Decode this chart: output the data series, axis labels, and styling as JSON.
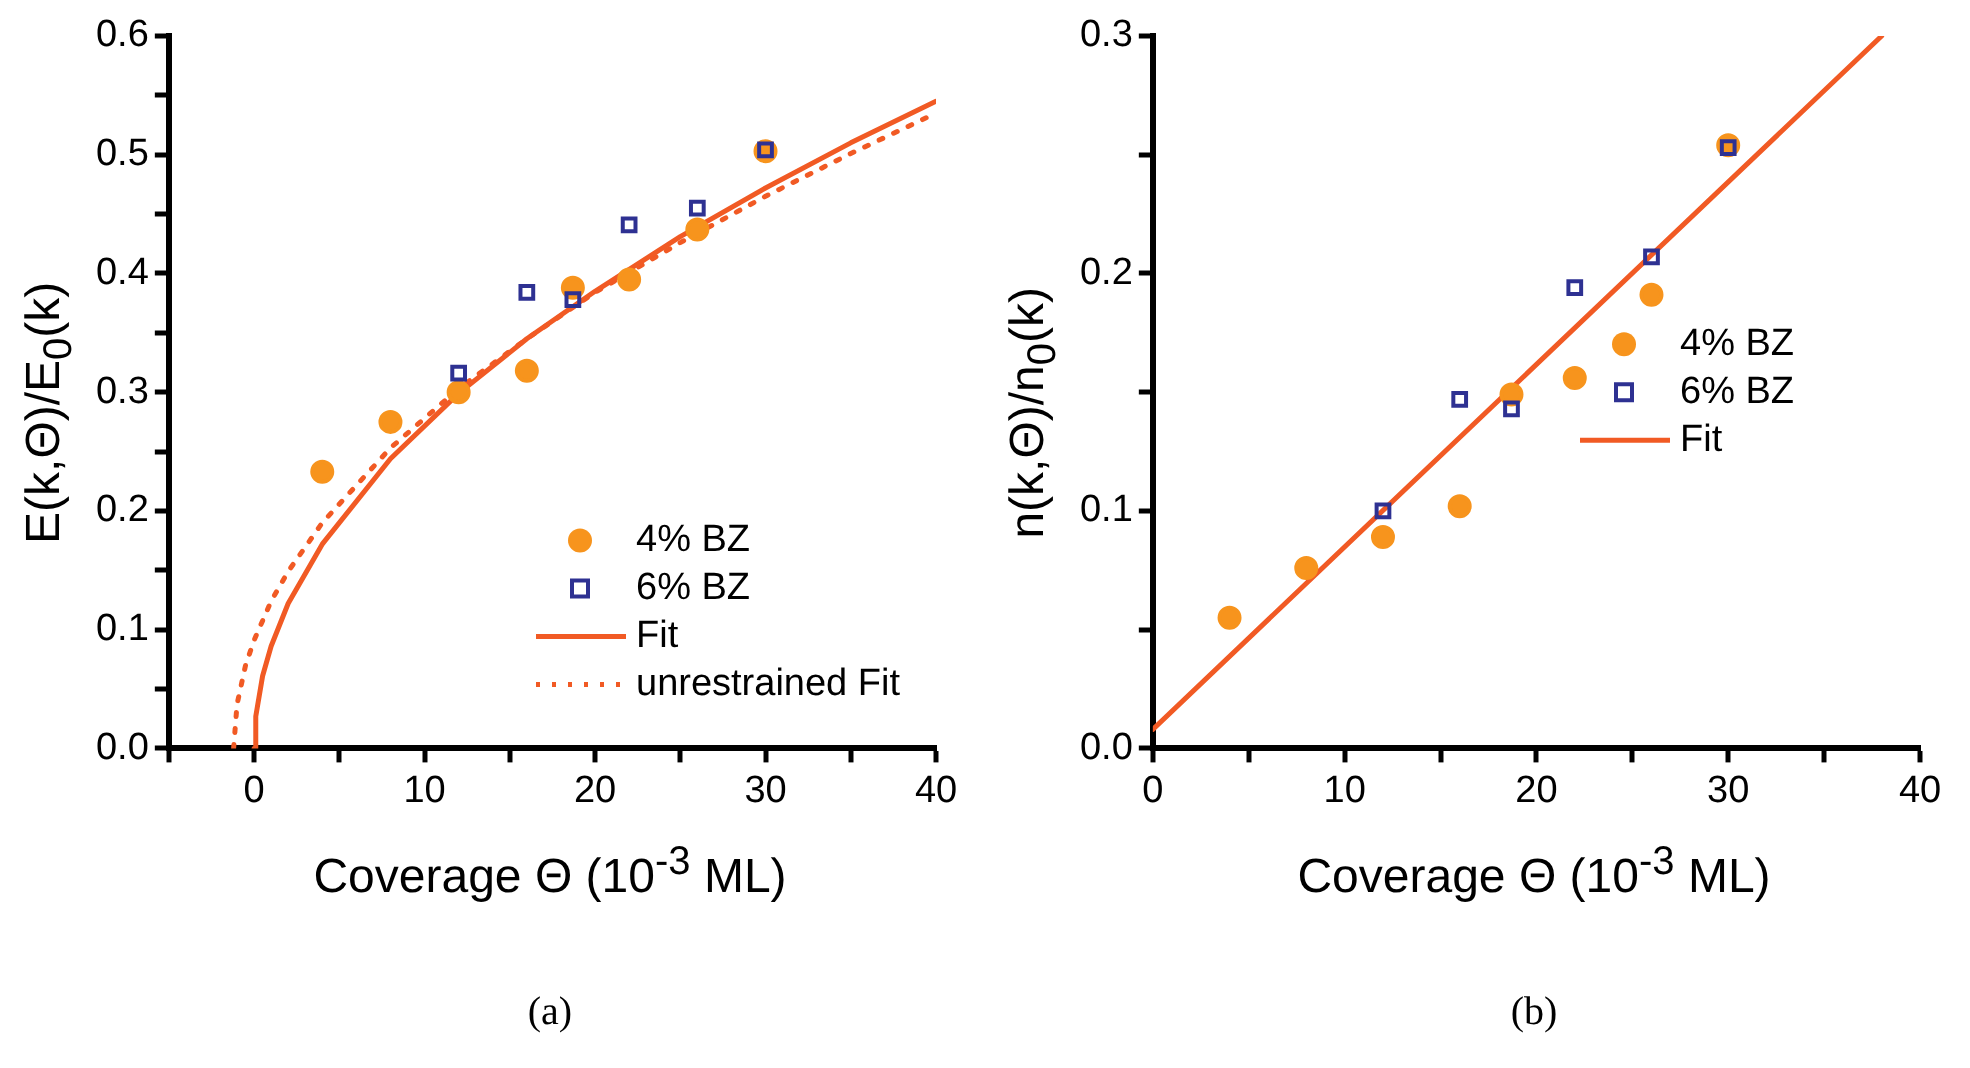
{
  "chart_data": [
    {
      "type": "scatter",
      "xlabel": "Coverage Θ (10$^{-3}$ ML)",
      "ylabel": "E(k,Θ)/E$_{0}$(k)",
      "annotations": [
        "(a)"
      ],
      "xlim": [
        -5,
        40
      ],
      "xticks": [
        {
          "value": -5,
          "label": null
        },
        {
          "value": 0,
          "label": "0"
        },
        {
          "value": 5,
          "label": null
        },
        {
          "value": 10,
          "label": "10"
        },
        {
          "value": 15,
          "label": null
        },
        {
          "value": 20,
          "label": "20"
        },
        {
          "value": 25,
          "label": null
        },
        {
          "value": 30,
          "label": "30"
        },
        {
          "value": 35,
          "label": null
        },
        {
          "value": 40,
          "label": "40"
        }
      ],
      "ylim": [
        0,
        0.6
      ],
      "yticks": [
        {
          "value": 0,
          "label": "0.0"
        },
        {
          "value": 0.05,
          "label": null
        },
        {
          "value": 0.1,
          "label": "0.1"
        },
        {
          "value": 0.15,
          "label": null
        },
        {
          "value": 0.2,
          "label": "0.2"
        },
        {
          "value": 0.25,
          "label": null
        },
        {
          "value": 0.3,
          "label": "0.3"
        },
        {
          "value": 0.35,
          "label": null
        },
        {
          "value": 0.4,
          "label": "0.4"
        },
        {
          "value": 0.45,
          "label": null
        },
        {
          "value": 0.5,
          "label": "0.5"
        },
        {
          "value": 0.55,
          "label": null
        },
        {
          "value": 0.6,
          "label": "0.6"
        }
      ],
      "grid": false,
      "legend": "bottom right",
      "series": [
        {
          "name": "4% BZ",
          "type": "scatter",
          "marker": "circle",
          "color": "#f7941d",
          "x": [
            4,
            8,
            12,
            16,
            18.7,
            22,
            26,
            30
          ],
          "values": [
            0.233,
            0.275,
            0.3,
            0.318,
            0.388,
            0.395,
            0.437,
            0.503
          ]
        },
        {
          "name": "6% BZ",
          "type": "scatter",
          "marker": "square",
          "color": "#2e3192",
          "x": [
            12,
            16,
            18.7,
            22,
            26,
            30
          ],
          "values": [
            0.316,
            0.384,
            0.378,
            0.441,
            0.455,
            0.504
          ]
        },
        {
          "name": "Fit",
          "type": "line",
          "line_style": "solid",
          "color": "#f15a24",
          "x": [
            0,
            0.1,
            0.5,
            1,
            2,
            4,
            8,
            12,
            16,
            20,
            25,
            30,
            35,
            40
          ],
          "values": [
            0,
            0.027,
            0.061,
            0.086,
            0.122,
            0.172,
            0.244,
            0.299,
            0.345,
            0.385,
            0.431,
            0.472,
            0.51,
            0.545
          ]
        },
        {
          "name": "unrestrained Fit",
          "type": "line",
          "line_style": "dotted",
          "color": "#f15a24",
          "x": [
            -1.2,
            -1,
            -0.5,
            0,
            1,
            2,
            4,
            8,
            12,
            16,
            20,
            25,
            30,
            35,
            40
          ],
          "values": [
            0,
            0.037,
            0.07,
            0.091,
            0.124,
            0.149,
            0.19,
            0.253,
            0.303,
            0.345,
            0.384,
            0.426,
            0.465,
            0.501,
            0.535
          ]
        }
      ]
    },
    {
      "type": "scatter",
      "xlabel": "Coverage Θ (10$^{-3}$ ML)",
      "ylabel": "n(k,Θ)/n$_{0}$(k)",
      "annotations": [
        "(b)"
      ],
      "xlim": [
        0,
        40
      ],
      "xticks": [
        {
          "value": 0,
          "label": "0"
        },
        {
          "value": 5,
          "label": null
        },
        {
          "value": 10,
          "label": "10"
        },
        {
          "value": 15,
          "label": null
        },
        {
          "value": 20,
          "label": "20"
        },
        {
          "value": 25,
          "label": null
        },
        {
          "value": 30,
          "label": "30"
        },
        {
          "value": 35,
          "label": null
        },
        {
          "value": 40,
          "label": "40"
        }
      ],
      "ylim": [
        0,
        0.3
      ],
      "yticks": [
        {
          "value": 0,
          "label": "0.0"
        },
        {
          "value": 0.05,
          "label": null
        },
        {
          "value": 0.1,
          "label": "0.1"
        },
        {
          "value": 0.15,
          "label": null
        },
        {
          "value": 0.2,
          "label": "0.2"
        },
        {
          "value": 0.25,
          "label": null
        },
        {
          "value": 0.3,
          "label": "0.3"
        }
      ],
      "grid": false,
      "legend": "right",
      "series": [
        {
          "name": "4% BZ",
          "type": "scatter",
          "marker": "circle",
          "color": "#f7941d",
          "x": [
            4,
            8,
            12,
            16,
            18.7,
            22,
            26,
            30
          ],
          "values": [
            0.055,
            0.076,
            0.089,
            0.102,
            0.149,
            0.156,
            0.191,
            0.254
          ]
        },
        {
          "name": "6% BZ",
          "type": "scatter",
          "marker": "square",
          "color": "#2e3192",
          "x": [
            12,
            16,
            18.7,
            22,
            26,
            30
          ],
          "values": [
            0.1,
            0.147,
            0.143,
            0.194,
            0.207,
            0.253
          ]
        },
        {
          "name": "Fit",
          "type": "line",
          "line_style": "solid",
          "color": "#f15a24",
          "x": [
            0,
            38
          ],
          "values": [
            0.008,
            0.3
          ]
        }
      ]
    }
  ]
}
